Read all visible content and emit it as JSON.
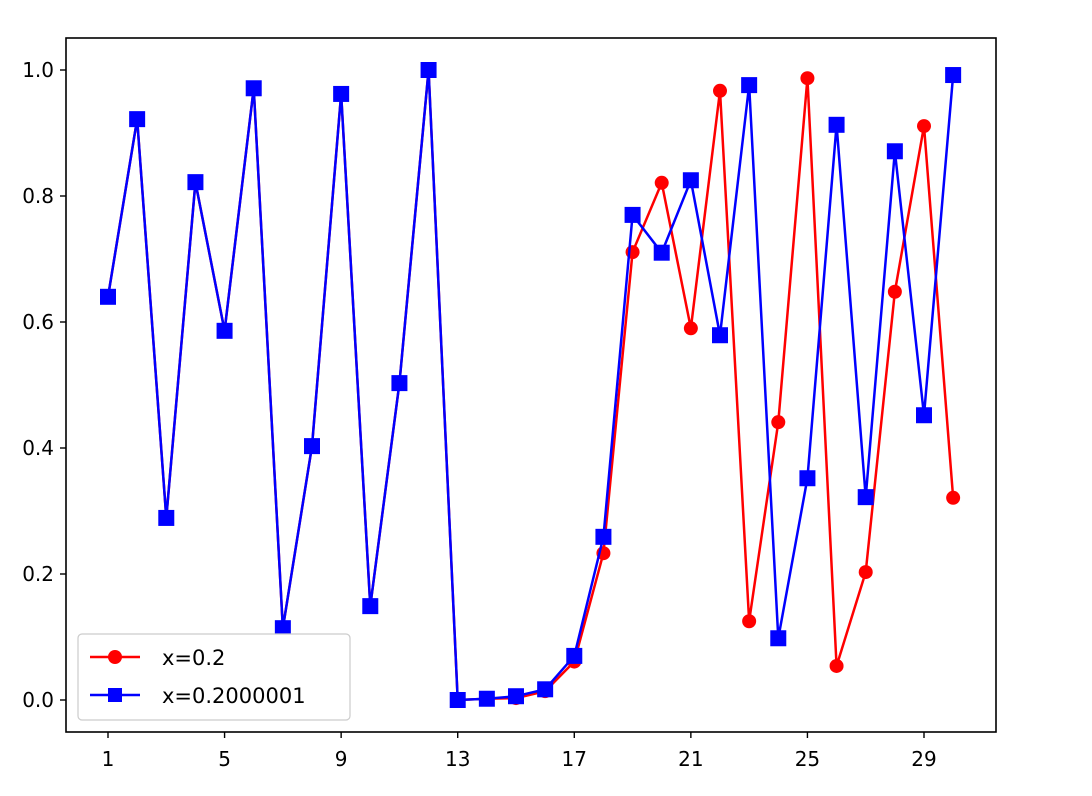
{
  "chart_data": {
    "type": "line",
    "title": "",
    "xlabel": "",
    "ylabel": "",
    "xlim": [
      -0.5,
      31.5
    ],
    "ylim": [
      -0.05,
      1.05
    ],
    "x": [
      1,
      2,
      3,
      4,
      5,
      6,
      7,
      8,
      9,
      10,
      11,
      12,
      13,
      14,
      15,
      16,
      17,
      18,
      19,
      20,
      21,
      22,
      23,
      24,
      25,
      26,
      27,
      28,
      29,
      30
    ],
    "xticks": [
      1,
      5,
      9,
      13,
      17,
      21,
      25,
      29
    ],
    "xtick_labels": [
      "1",
      "5",
      "9",
      "13",
      "17",
      "21",
      "25",
      "29"
    ],
    "yticks": [
      0.0,
      0.2,
      0.4,
      0.6,
      0.8,
      1.0
    ],
    "ytick_labels": [
      "0.0",
      "0.2",
      "0.4",
      "0.6",
      "0.8",
      "1.0"
    ],
    "grid": false,
    "legend_position": "lower-left",
    "series": [
      {
        "name": "x=0.2",
        "color": "#ff0000",
        "marker": "circle",
        "values": [
          0.64,
          0.922,
          0.289,
          0.822,
          0.586,
          0.971,
          0.114,
          0.403,
          0.962,
          0.149,
          0.503,
          1.0,
          0.0,
          0.002,
          0.003,
          0.014,
          0.061,
          0.233,
          0.711,
          0.821,
          0.59,
          0.967,
          0.125,
          0.441,
          0.987,
          0.054,
          0.203,
          0.648,
          0.911,
          0.321
        ]
      },
      {
        "name": "x=0.2000001",
        "color": "#0000ff",
        "marker": "square",
        "values": [
          0.64,
          0.922,
          0.289,
          0.822,
          0.586,
          0.971,
          0.114,
          0.403,
          0.962,
          0.149,
          0.503,
          1.0,
          0.0,
          0.002,
          0.006,
          0.017,
          0.07,
          0.259,
          0.77,
          0.71,
          0.825,
          0.579,
          0.976,
          0.098,
          0.352,
          0.913,
          0.322,
          0.871,
          0.452,
          0.992
        ]
      }
    ]
  }
}
